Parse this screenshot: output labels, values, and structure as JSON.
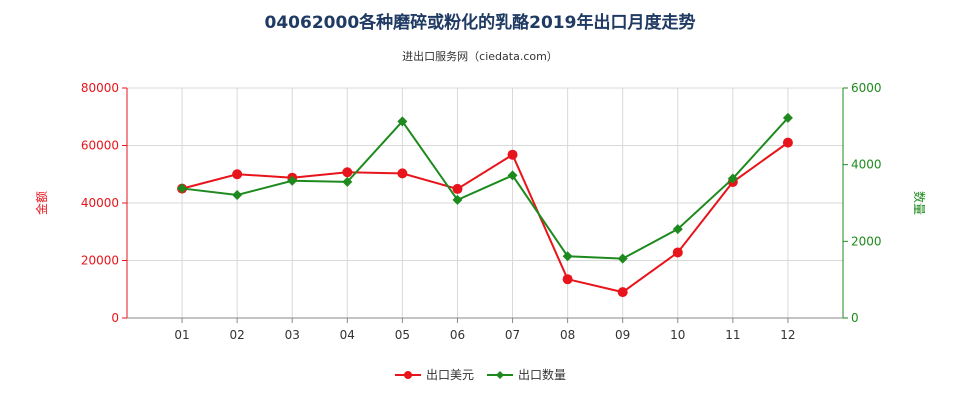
{
  "chart_data": {
    "type": "line",
    "title": "04062000各种磨碎或粉化的乳酪2019年出口月度走势",
    "subtitle": "进出口服务网（ciedata.com）",
    "categories": [
      "01",
      "02",
      "03",
      "04",
      "05",
      "06",
      "07",
      "08",
      "09",
      "10",
      "11",
      "12"
    ],
    "series": [
      {
        "name": "出口美元",
        "axis": "left",
        "color": "#e8141b",
        "values": [
          45000,
          50000,
          48800,
          50700,
          50300,
          44900,
          56800,
          13500,
          9000,
          22800,
          47300,
          61000
        ]
      },
      {
        "name": "出口数量",
        "axis": "right",
        "color": "#1e8a1e",
        "values": [
          3380,
          3210,
          3580,
          3550,
          5130,
          3080,
          3720,
          1610,
          1550,
          2320,
          3640,
          5220
        ]
      }
    ],
    "ylabel_left": "金额",
    "ylabel_right": "数量",
    "ylim_left": [
      0,
      80000
    ],
    "ylim_right": [
      0,
      6000
    ],
    "yticks_left": [
      "0",
      "20000",
      "40000",
      "60000",
      "80000"
    ],
    "yticks_right": [
      "0",
      "2000",
      "4000",
      "6000"
    ],
    "grid": true,
    "legend_position": "bottom-center"
  }
}
